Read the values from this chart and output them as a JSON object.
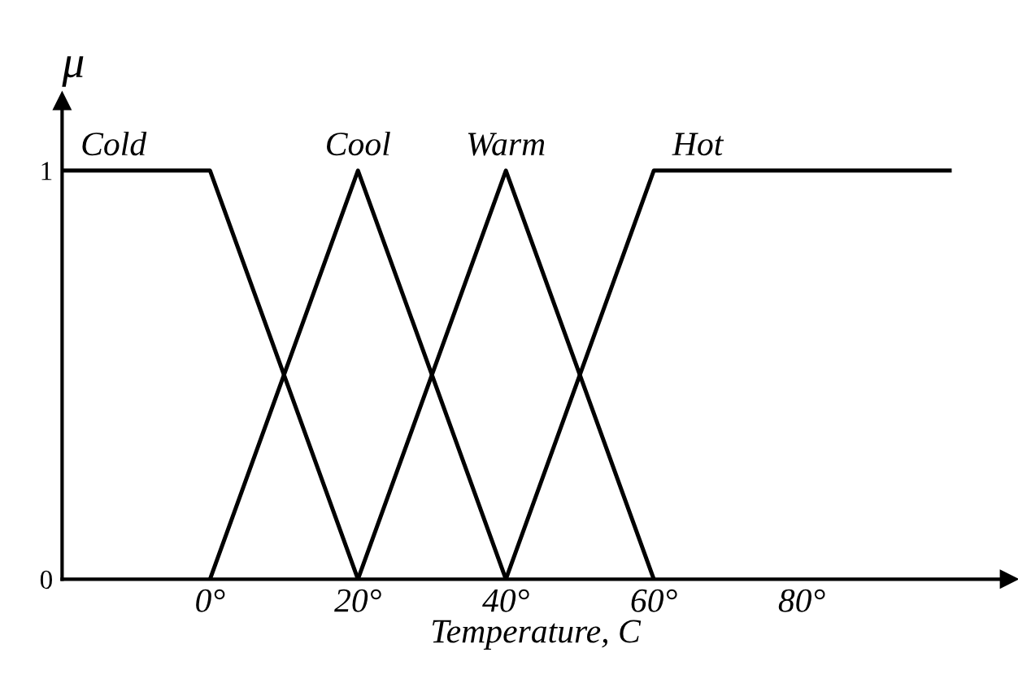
{
  "chart_data": {
    "type": "line",
    "xlabel": "Temperature, C",
    "ylabel": "μ",
    "xlim": [
      -20,
      108
    ],
    "ylim": [
      0,
      1.17
    ],
    "xticks": [
      {
        "value": 0,
        "label": "0°"
      },
      {
        "value": 20,
        "label": "20°"
      },
      {
        "value": 40,
        "label": "40°"
      },
      {
        "value": 60,
        "label": "60°"
      },
      {
        "value": 80,
        "label": "80°"
      }
    ],
    "yticks": [
      0,
      1
    ],
    "series": [
      {
        "name": "Cold",
        "color": "#000000",
        "x": [
          -20,
          0,
          20
        ],
        "values": [
          1,
          1,
          0
        ]
      },
      {
        "name": "Cool",
        "color": "#000000",
        "x": [
          0,
          20,
          40
        ],
        "values": [
          0,
          1,
          0
        ]
      },
      {
        "name": "Warm",
        "color": "#000000",
        "x": [
          20,
          40,
          60
        ],
        "values": [
          0,
          1,
          0
        ]
      },
      {
        "name": "Hot",
        "color": "#000000",
        "x": [
          40,
          60,
          100
        ],
        "values": [
          0,
          1,
          1
        ]
      }
    ]
  }
}
